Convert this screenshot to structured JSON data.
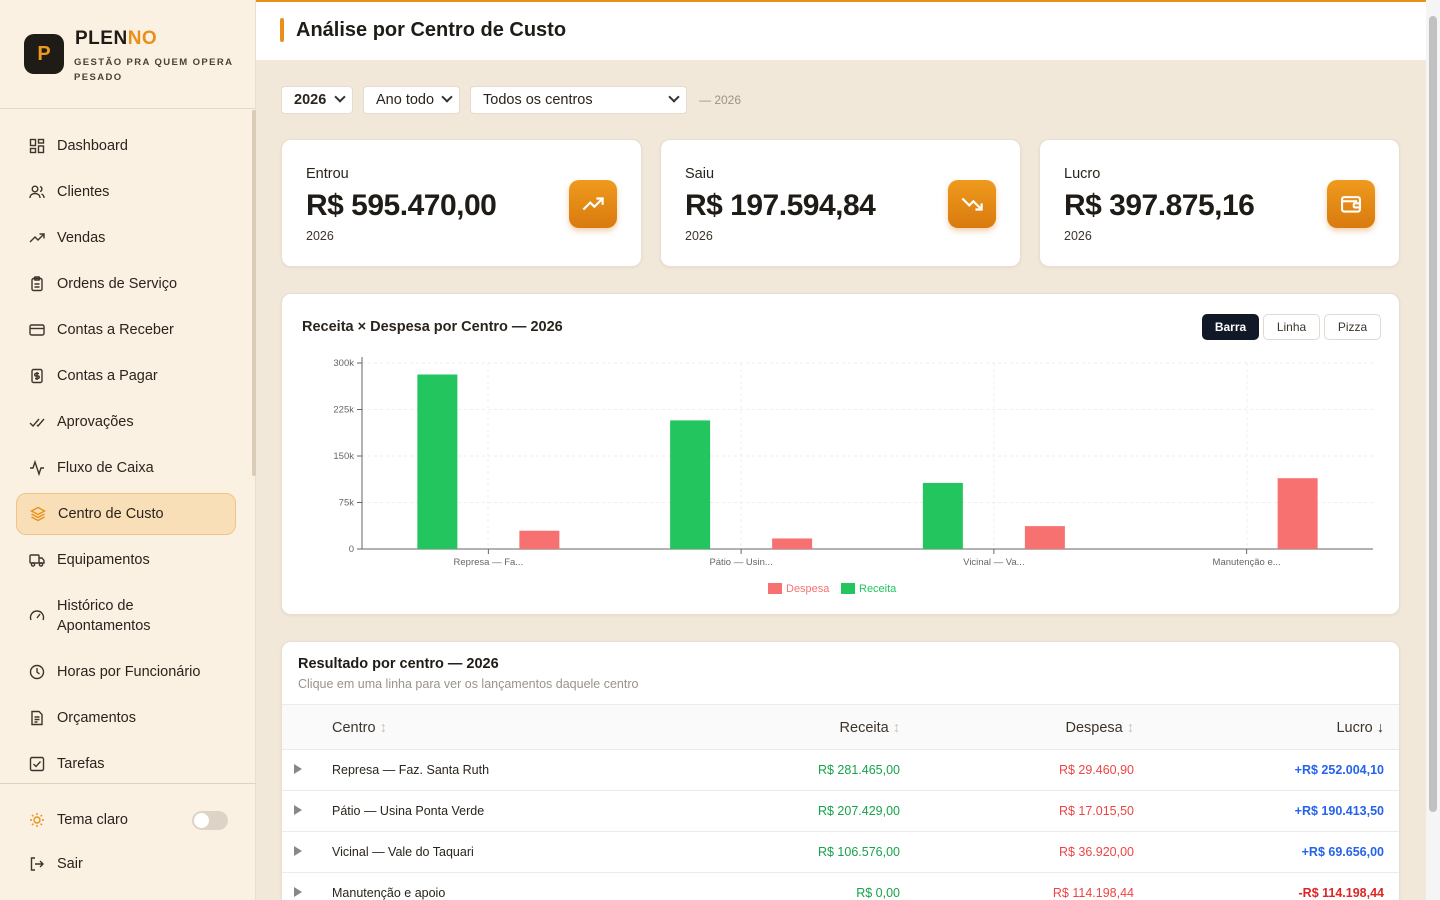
{
  "brand": {
    "name_main": "PLEN",
    "name_accent": "NO",
    "logo_letter": "P",
    "tagline": "GESTÃO PRA QUEM OPERA PESADO"
  },
  "sidebar": {
    "items": [
      {
        "label": "Dashboard",
        "icon": "grid-icon"
      },
      {
        "label": "Clientes",
        "icon": "users-icon"
      },
      {
        "label": "Vendas",
        "icon": "trending-up-icon"
      },
      {
        "label": "Ordens de Serviço",
        "icon": "clipboard-icon"
      },
      {
        "label": "Contas a Receber",
        "icon": "credit-card-icon"
      },
      {
        "label": "Contas a Pagar",
        "icon": "receipt-icon"
      },
      {
        "label": "Aprovações",
        "icon": "check-double-icon"
      },
      {
        "label": "Fluxo de Caixa",
        "icon": "activity-icon"
      },
      {
        "label": "Centro de Custo",
        "icon": "layers-icon",
        "active": true
      },
      {
        "label": "Equipamentos",
        "icon": "truck-icon"
      },
      {
        "label": "Histórico de Apontamentos",
        "icon": "gauge-icon"
      },
      {
        "label": "Horas por Funcionário",
        "icon": "clock-icon"
      },
      {
        "label": "Orçamentos",
        "icon": "file-text-icon"
      },
      {
        "label": "Tarefas",
        "icon": "check-square-icon"
      }
    ],
    "theme_label": "Tema claro",
    "logout_label": "Sair"
  },
  "header": {
    "title": "Análise por Centro de Custo"
  },
  "filters": {
    "year": "2026",
    "period": "Ano todo",
    "center": "Todos os centros",
    "note": "— 2026"
  },
  "kpis": [
    {
      "label": "Entrou",
      "value": "R$ 595.470,00",
      "sub": "2026",
      "icon": "trending-up-icon"
    },
    {
      "label": "Saiu",
      "value": "R$ 197.594,84",
      "sub": "2026",
      "icon": "trending-down-icon"
    },
    {
      "label": "Lucro",
      "value": "R$ 397.875,16",
      "sub": "2026",
      "icon": "wallet-icon"
    }
  ],
  "chart": {
    "title": "Receita × Despesa por Centro — 2026",
    "modes": [
      "Barra",
      "Linha",
      "Pizza"
    ],
    "active_mode": "Barra"
  },
  "chart_data": {
    "type": "bar",
    "categories": [
      "Represa — Fa...",
      "Pátio — Usin...",
      "Vicinal — Va...",
      "Manutenção e..."
    ],
    "series": [
      {
        "name": "Receita",
        "color": "#22c55e",
        "values": [
          281465.0,
          207429.0,
          106576.0,
          0
        ]
      },
      {
        "name": "Despesa",
        "color": "#f87171",
        "values": [
          29460.9,
          17015.5,
          36920.0,
          114198.44
        ]
      }
    ],
    "legend_order": [
      "Despesa",
      "Receita"
    ],
    "yticks": [
      "0",
      "75k",
      "150k",
      "225k",
      "300k"
    ],
    "ylim": [
      0,
      300000
    ],
    "legend": "bottom"
  },
  "table": {
    "title": "Resultado por centro — 2026",
    "subtitle": "Clique em uma linha para ver os lançamentos daquele centro",
    "columns": {
      "centro": "Centro",
      "receita": "Receita",
      "despesa": "Despesa",
      "lucro": "Lucro"
    },
    "rows": [
      {
        "centro": "Represa — Faz. Santa Ruth",
        "receita": "R$ 281.465,00",
        "despesa": "R$ 29.460,90",
        "lucro": "+R$ 252.004,10",
        "positive": true
      },
      {
        "centro": "Pátio — Usina Ponta Verde",
        "receita": "R$ 207.429,00",
        "despesa": "R$ 17.015,50",
        "lucro": "+R$ 190.413,50",
        "positive": true
      },
      {
        "centro": "Vicinal — Vale do Taquari",
        "receita": "R$ 106.576,00",
        "despesa": "R$ 36.920,00",
        "lucro": "+R$ 69.656,00",
        "positive": true
      },
      {
        "centro": "Manutenção e apoio",
        "receita": "R$ 0,00",
        "despesa": "R$ 114.198,44",
        "lucro": "-R$ 114.198,44",
        "positive": false
      }
    ]
  }
}
